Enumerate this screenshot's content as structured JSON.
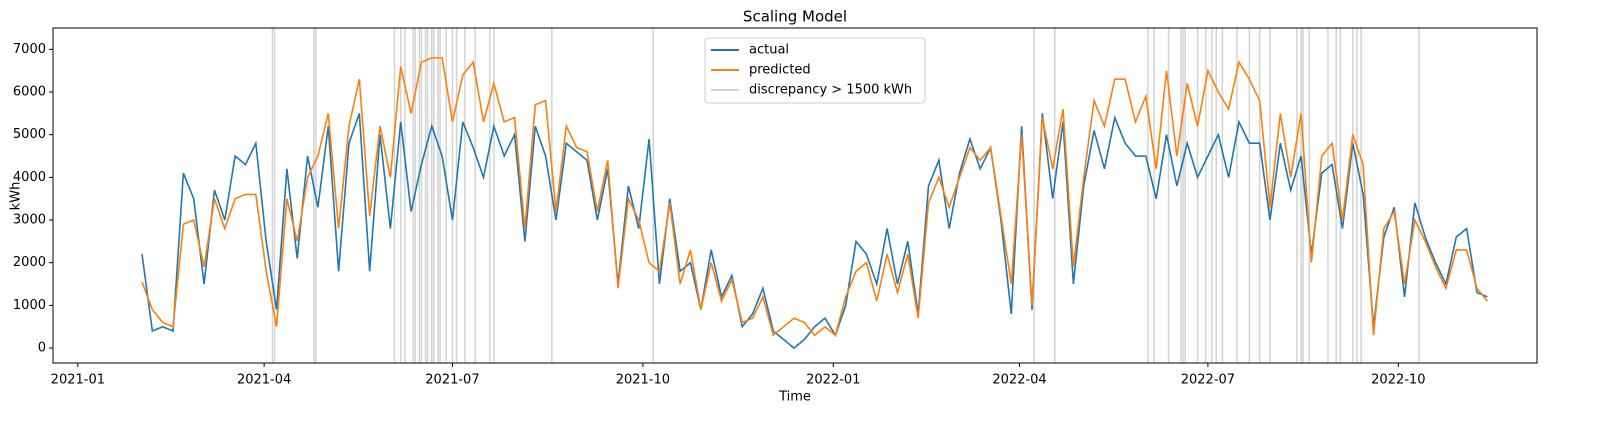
{
  "chart_data": {
    "type": "line",
    "title": "Scaling Model",
    "x_label": "Time",
    "y_label": "kWh",
    "xlim": [
      -12,
      705
    ],
    "ylim": [
      -350,
      7500
    ],
    "xticks": [
      {
        "value": 0,
        "label": "2021-01"
      },
      {
        "value": 90,
        "label": "2021-04"
      },
      {
        "value": 181,
        "label": "2021-07"
      },
      {
        "value": 273,
        "label": "2021-10"
      },
      {
        "value": 365,
        "label": "2022-01"
      },
      {
        "value": 455,
        "label": "2022-04"
      },
      {
        "value": 546,
        "label": "2022-07"
      },
      {
        "value": 638,
        "label": "2022-10"
      }
    ],
    "yticks": [
      0,
      1000,
      2000,
      3000,
      4000,
      5000,
      6000,
      7000
    ],
    "legend": "upper center",
    "x": [
      31,
      36,
      41,
      46,
      51,
      56,
      61,
      66,
      71,
      76,
      81,
      86,
      91,
      96,
      101,
      106,
      111,
      116,
      121,
      126,
      131,
      136,
      141,
      146,
      151,
      156,
      161,
      166,
      171,
      176,
      181,
      186,
      191,
      196,
      201,
      206,
      211,
      216,
      221,
      226,
      231,
      236,
      241,
      246,
      251,
      256,
      261,
      266,
      271,
      276,
      281,
      286,
      291,
      296,
      301,
      306,
      311,
      316,
      321,
      326,
      331,
      336,
      341,
      346,
      351,
      356,
      361,
      366,
      371,
      376,
      381,
      386,
      391,
      396,
      401,
      406,
      411,
      416,
      421,
      426,
      431,
      436,
      441,
      446,
      451,
      456,
      461,
      466,
      471,
      476,
      481,
      486,
      491,
      496,
      501,
      506,
      511,
      516,
      521,
      526,
      531,
      536,
      541,
      546,
      551,
      556,
      561,
      566,
      571,
      576,
      581,
      586,
      591,
      596,
      601,
      606,
      611,
      616,
      621,
      626,
      631,
      636,
      641,
      646,
      651,
      656,
      661,
      666,
      671,
      676,
      681
    ],
    "series": [
      {
        "name": "actual",
        "color": "#1f77b4",
        "values": [
          2200,
          400,
          500,
          400,
          4100,
          3500,
          1500,
          3700,
          3000,
          4500,
          4300,
          4800,
          2500,
          900,
          4200,
          2100,
          4500,
          3300,
          5200,
          1800,
          4800,
          5500,
          1800,
          5000,
          2800,
          5300,
          3200,
          4300,
          5200,
          4500,
          3000,
          5300,
          4700,
          4000,
          5200,
          4500,
          5000,
          2500,
          5200,
          4500,
          3000,
          4800,
          4600,
          4400,
          3000,
          4200,
          1500,
          3800,
          2800,
          4900,
          1500,
          3500,
          1800,
          2000,
          900,
          2300,
          1200,
          1700,
          500,
          800,
          1400,
          400,
          200,
          0,
          200,
          500,
          700,
          300,
          1000,
          2500,
          2200,
          1500,
          2800,
          1500,
          2500,
          800,
          3800,
          4400,
          2800,
          4100,
          4900,
          4200,
          4700,
          3000,
          800,
          5200,
          900,
          5500,
          3500,
          5300,
          1500,
          3800,
          5100,
          4200,
          5400,
          4800,
          4500,
          4500,
          3500,
          5000,
          3800,
          4800,
          4000,
          4500,
          5000,
          4000,
          5300,
          4800,
          4800,
          3000,
          4800,
          3700,
          4500,
          2200,
          4100,
          4300,
          2800,
          4800,
          3600,
          500,
          2600,
          3300,
          1200,
          3400,
          2600,
          2000,
          1500,
          2600,
          2800,
          1300,
          1200
        ]
      },
      {
        "name": "predicted",
        "color": "#ff7f0e",
        "values": [
          1550,
          900,
          600,
          500,
          2900,
          3000,
          1900,
          3500,
          2800,
          3500,
          3600,
          3600,
          1800,
          500,
          3500,
          2500,
          4000,
          4500,
          5500,
          2800,
          5200,
          6300,
          3100,
          5200,
          4000,
          6600,
          5500,
          6700,
          6800,
          6800,
          5300,
          6400,
          6700,
          5300,
          6200,
          5300,
          5400,
          2800,
          5700,
          5800,
          3200,
          5200,
          4700,
          4600,
          3200,
          4400,
          1400,
          3500,
          3000,
          2000,
          1800,
          3400,
          1500,
          2300,
          900,
          2000,
          1100,
          1600,
          600,
          700,
          1200,
          300,
          500,
          700,
          600,
          300,
          500,
          300,
          1200,
          1800,
          2000,
          1100,
          2200,
          1300,
          2200,
          700,
          3400,
          4000,
          3300,
          4000,
          4700,
          4400,
          4700,
          3100,
          1500,
          5000,
          1000,
          5400,
          4200,
          5600,
          1900,
          4000,
          5800,
          5200,
          6300,
          6300,
          5300,
          5900,
          4200,
          6500,
          4500,
          6200,
          5200,
          6500,
          6000,
          5600,
          6700,
          6300,
          5800,
          3300,
          5500,
          4000,
          5500,
          2000,
          4500,
          4800,
          3000,
          5000,
          4300,
          300,
          2800,
          3200,
          1500,
          3000,
          2500,
          1900,
          1400,
          2300,
          2300,
          1400,
          1100
        ]
      }
    ],
    "discrepancy": {
      "name": "discrepancy > 1500 kWh",
      "color": "#d3d3d3",
      "x": [
        94,
        95,
        114,
        115,
        153,
        156,
        158,
        162,
        163,
        165,
        166,
        168,
        169,
        171,
        172,
        174,
        175,
        178,
        181,
        183,
        187,
        192,
        199,
        201,
        229,
        278,
        462,
        472,
        517,
        520,
        527,
        533,
        534,
        535,
        541,
        545,
        548,
        550,
        553,
        560,
        566,
        571,
        576,
        589,
        591,
        592,
        595,
        604,
        608,
        610,
        616,
        618,
        620,
        648
      ]
    }
  }
}
